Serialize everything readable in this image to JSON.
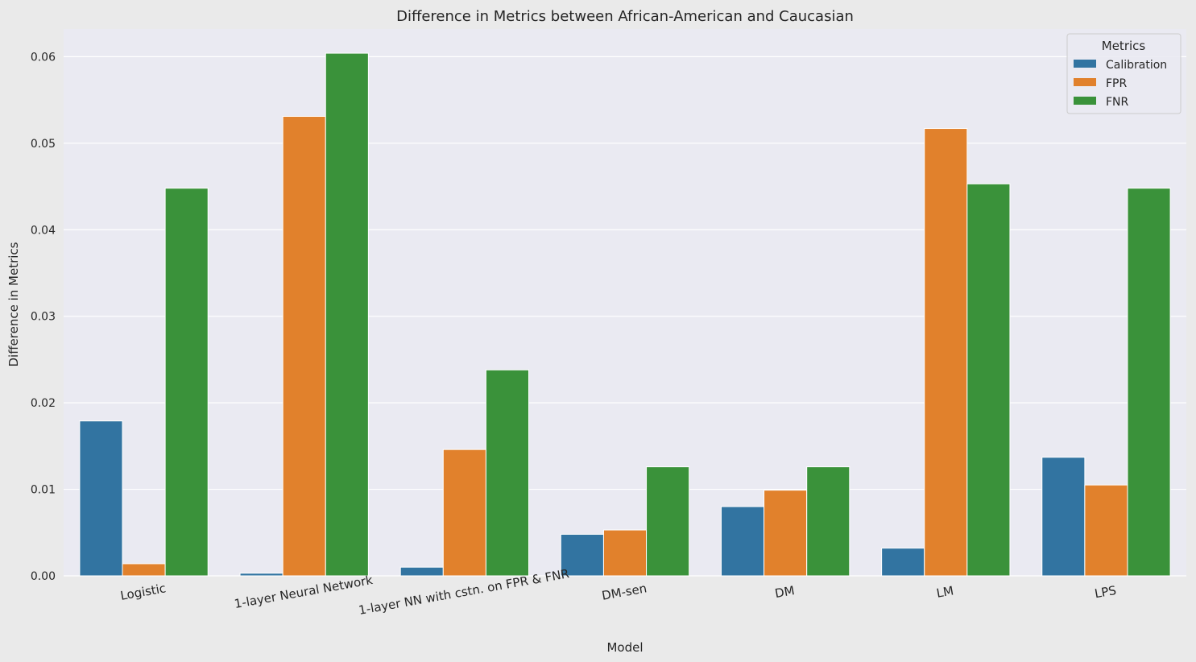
{
  "chart_data": {
    "type": "bar",
    "title": "Difference in Metrics between African-American and Caucasian",
    "xlabel": "Model",
    "ylabel": "Difference in Metrics",
    "categories": [
      "Logistic",
      "1-layer Neural Network",
      "1-layer NN with cstn. on FPR & FNR",
      "DM-sen",
      "DM",
      "LM",
      "LPS"
    ],
    "series": [
      {
        "name": "Calibration",
        "color": "#3274a1",
        "values": [
          0.0179,
          0.0003,
          0.001,
          0.0048,
          0.008,
          0.0032,
          0.0137
        ]
      },
      {
        "name": "FPR",
        "color": "#e1812c",
        "values": [
          0.0014,
          0.0531,
          0.0146,
          0.0053,
          0.0099,
          0.0517,
          0.0105
        ]
      },
      {
        "name": "FNR",
        "color": "#3a923a",
        "values": [
          0.0448,
          0.0604,
          0.0238,
          0.0126,
          0.0126,
          0.0453,
          0.0448
        ]
      }
    ],
    "ylim": [
      0,
      0.0632
    ],
    "yticks": [
      0.0,
      0.01,
      0.02,
      0.03,
      0.04,
      0.05,
      0.06
    ],
    "ytick_labels": [
      "0.00",
      "0.01",
      "0.02",
      "0.03",
      "0.04",
      "0.05",
      "0.06"
    ],
    "grid": true,
    "legend": {
      "title": "Metrics",
      "placement": "top-right"
    },
    "colors": {
      "figure_bg": "#eaeaea",
      "axes_bg": "#eaeaf2",
      "grid": "#ffffff",
      "text": "#262626"
    }
  }
}
